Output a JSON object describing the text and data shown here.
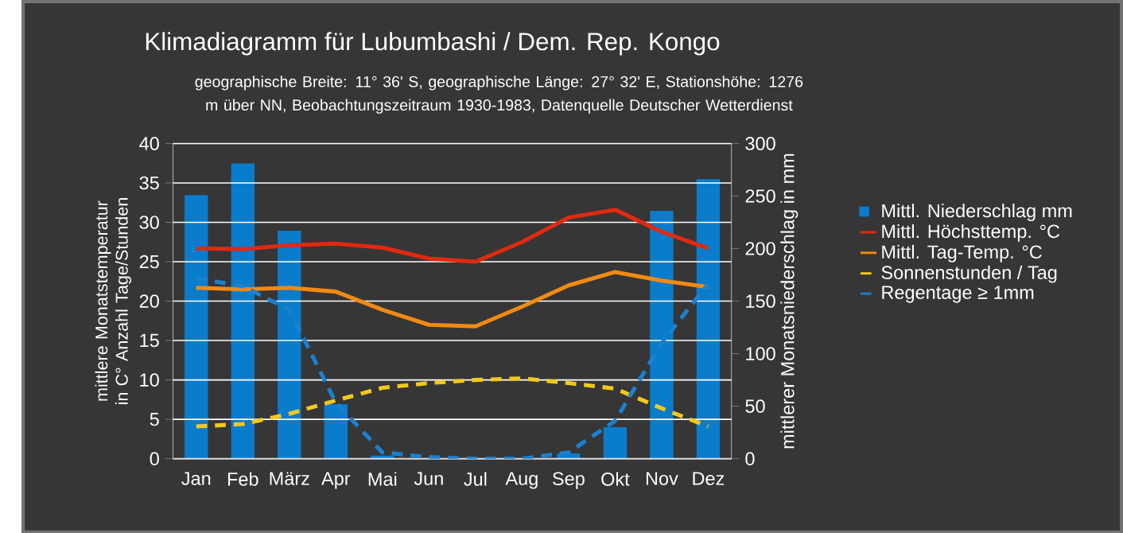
{
  "chart_data": {
    "type": "line",
    "title": "Klimadiagramm für Lubumbashi / Dem. Rep. Kongo",
    "subtitle": "geographische Breite: 11° 36' S, geographische Länge: 27° 32' E, Stationshöhe: 1276 m über NN, Beobachtungszeitraum 1930-1983, Datenquelle Deutscher Wetterdienst",
    "ylabel": "mittlere Monatstemperatur in C° Anzahl Tage/Stunden",
    "y2label": "mittlerer Monatsniederschlag in mm",
    "categories": [
      "Jan",
      "Feb",
      "März",
      "Apr",
      "Mai",
      "Jun",
      "Jul",
      "Aug",
      "Sep",
      "Okt",
      "Nov",
      "Dez"
    ],
    "ylim": [
      0,
      40
    ],
    "yticks": [
      0,
      5,
      10,
      15,
      20,
      25,
      30,
      35,
      40
    ],
    "y2lim": [
      0,
      300
    ],
    "y2ticks": [
      0,
      50,
      100,
      150,
      200,
      250,
      300
    ],
    "grid": "y",
    "legend": "right",
    "series": [
      {
        "name": "Mittl. Niederschlag mm",
        "type": "bar",
        "axis": "y2",
        "color": "#0a7ccc",
        "values": [
          251,
          281,
          217,
          52,
          3,
          0,
          0,
          0,
          5,
          30,
          236,
          266
        ]
      },
      {
        "name": "Mittl. Höchsttemp. °C",
        "line_style": "solid",
        "color": "#e02a10",
        "values": [
          26.7,
          26.6,
          27.1,
          27.3,
          26.8,
          25.4,
          25.0,
          27.5,
          30.6,
          31.6,
          28.8,
          26.7
        ]
      },
      {
        "name": "Mittl. Tag-Temp. °C",
        "line_style": "solid",
        "color": "#f28a12",
        "values": [
          21.7,
          21.5,
          21.7,
          21.2,
          18.9,
          17.0,
          16.8,
          19.3,
          22.0,
          23.7,
          22.6,
          21.8
        ]
      },
      {
        "name": "Sonnenstunden / Tag",
        "line_style": "dashed",
        "color": "#f2c81c",
        "values": [
          4.1,
          4.4,
          5.7,
          7.4,
          9.0,
          9.6,
          10.0,
          10.2,
          9.6,
          8.9,
          6.4,
          4.1
        ]
      },
      {
        "name": "Regentage ≥ 1mm",
        "line_style": "dashed",
        "color": "#1a80d0",
        "values": [
          22.9,
          21.9,
          18.9,
          7.1,
          0.8,
          0.2,
          0,
          0,
          0.8,
          4.8,
          14.7,
          22.2
        ]
      }
    ]
  }
}
